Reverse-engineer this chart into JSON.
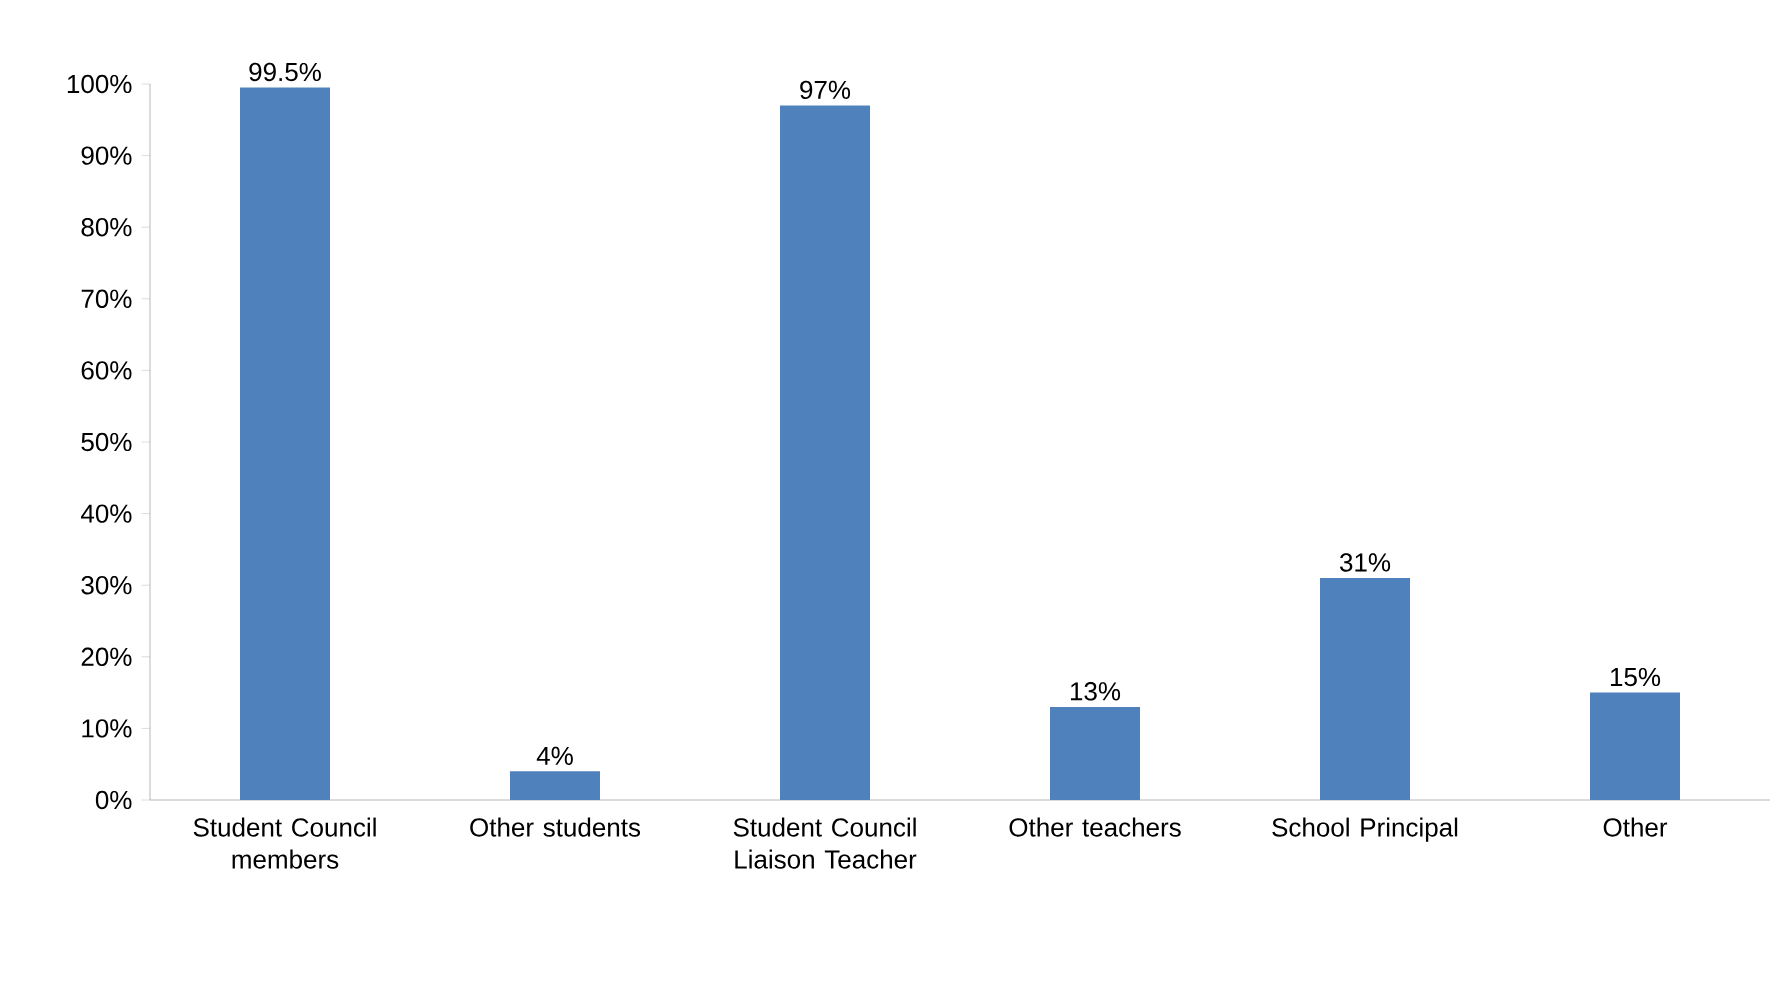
{
  "chart_data": {
    "type": "bar",
    "categories": [
      "Student Council members",
      "Other students",
      "Student Council Liaison Teacher",
      "Other teachers",
      "School Principal",
      "Other"
    ],
    "values": [
      99.5,
      4,
      97,
      13,
      31,
      15
    ],
    "value_labels": [
      "99.5%",
      "4%",
      "97%",
      "13%",
      "31%",
      "15%"
    ],
    "color": "#4f81bd",
    "ylim": [
      0,
      100
    ],
    "yticks": [
      {
        "value": 0,
        "label": "0%"
      },
      {
        "value": 10,
        "label": "10%"
      },
      {
        "value": 20,
        "label": "20%"
      },
      {
        "value": 30,
        "label": "30%"
      },
      {
        "value": 40,
        "label": "40%"
      },
      {
        "value": 50,
        "label": "50%"
      },
      {
        "value": 60,
        "label": "60%"
      },
      {
        "value": 70,
        "label": "70%"
      },
      {
        "value": 80,
        "label": "80%"
      },
      {
        "value": 90,
        "label": "90%"
      },
      {
        "value": 100,
        "label": "100%"
      }
    ],
    "grid": false
  }
}
